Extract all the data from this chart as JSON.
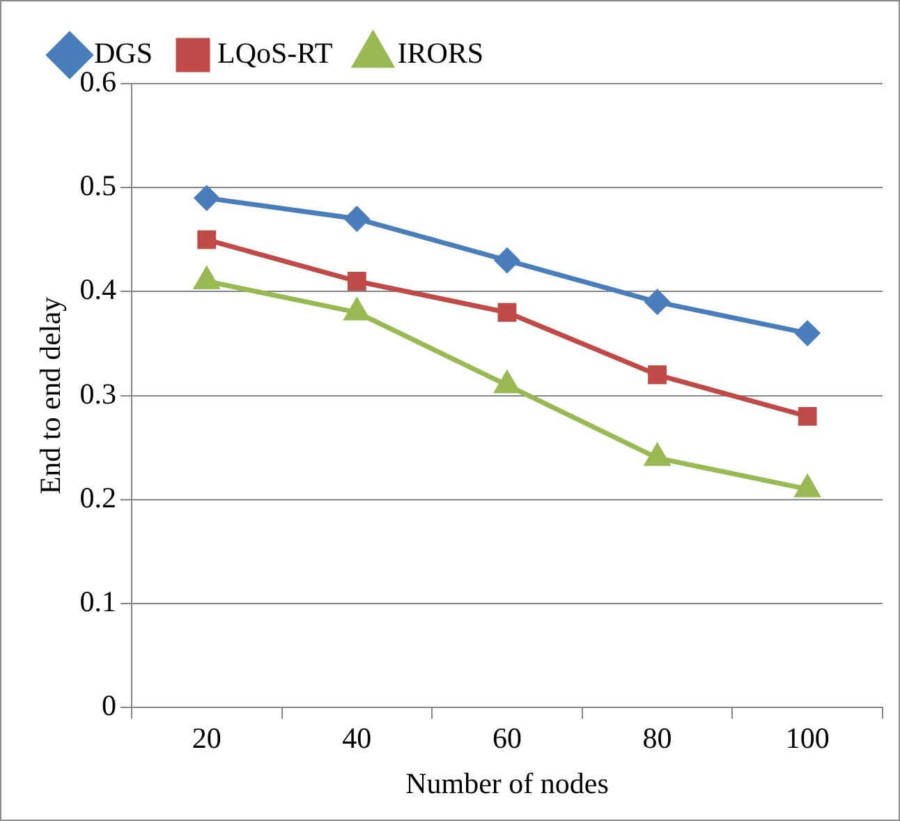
{
  "chart_data": {
    "type": "line",
    "xlabel": "Number of nodes",
    "ylabel": "End to end delay",
    "categories": [
      "20",
      "40",
      "60",
      "80",
      "100"
    ],
    "series": [
      {
        "name": "DGS",
        "color": "#4a7ebb",
        "marker": "diamond",
        "values": [
          0.49,
          0.47,
          0.43,
          0.39,
          0.36
        ]
      },
      {
        "name": "LQoS-RT",
        "color": "#be4b48",
        "marker": "square",
        "values": [
          0.45,
          0.41,
          0.38,
          0.32,
          0.28
        ]
      },
      {
        "name": "IRORS",
        "color": "#98b954",
        "marker": "triangle",
        "values": [
          0.41,
          0.38,
          0.31,
          0.24,
          0.21
        ]
      }
    ],
    "ylim": [
      0,
      0.6
    ],
    "yticks": [
      0,
      0.1,
      0.2,
      0.3,
      0.4,
      0.5,
      0.6
    ],
    "grid": "y",
    "legend": "top",
    "line_style": "solid"
  }
}
